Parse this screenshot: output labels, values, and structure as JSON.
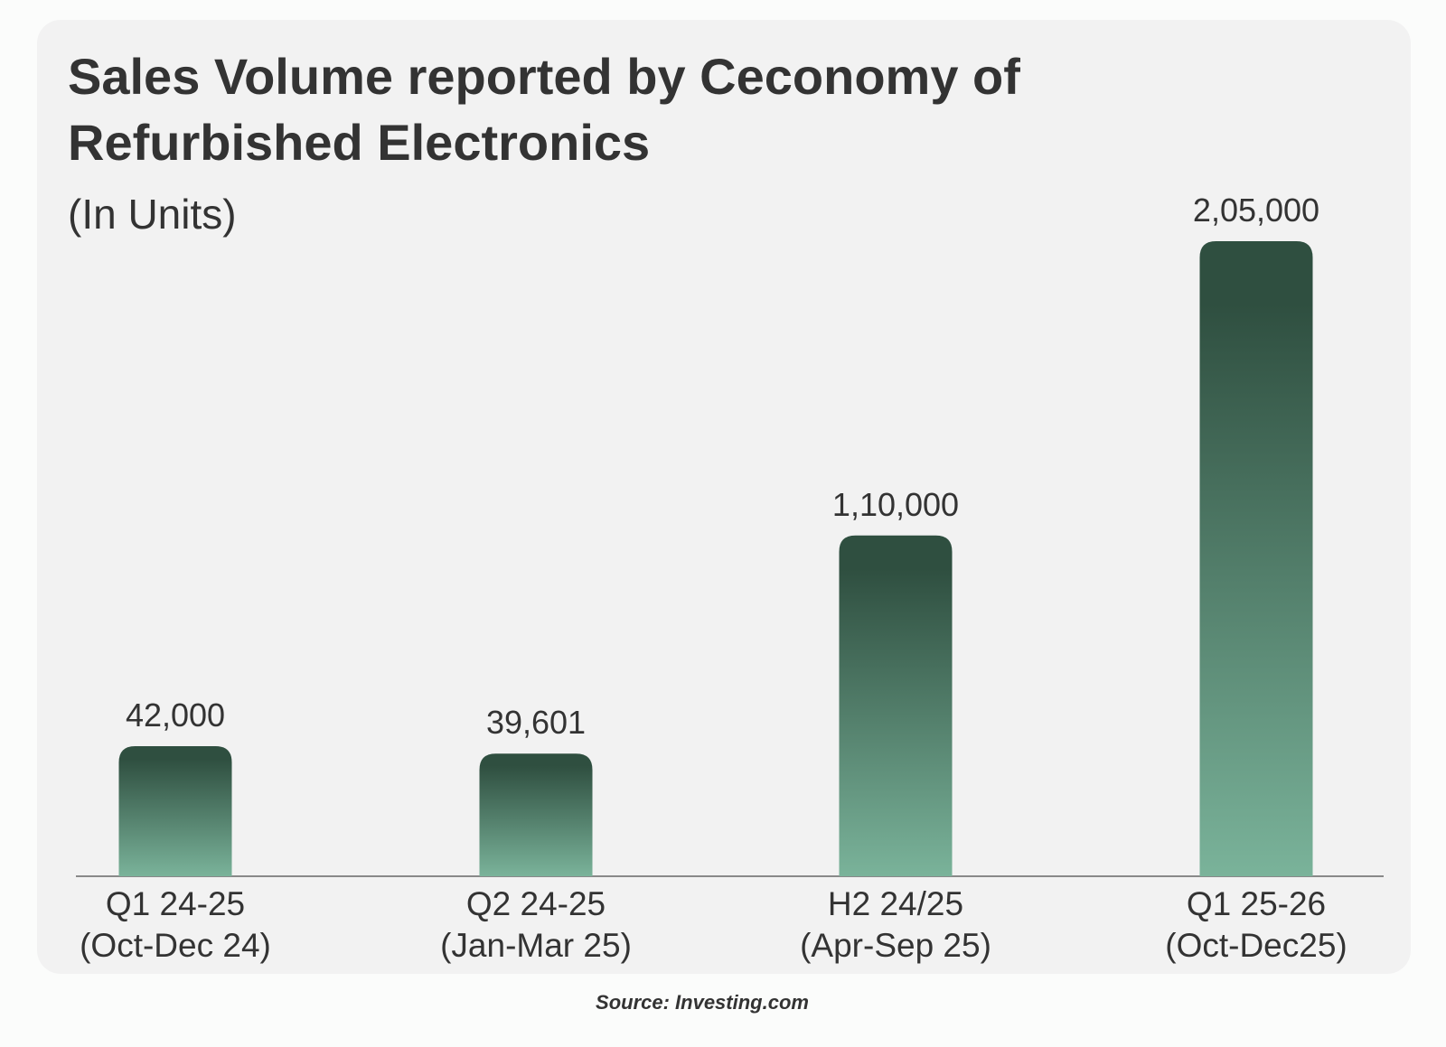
{
  "chart_data": {
    "type": "bar",
    "title": [
      "Sales Volume reported by Ceconomy of",
      "Refurbished Electronics"
    ],
    "subtitle": "(In Units)",
    "categories": [
      [
        "Q1 24-25",
        "(Oct-Dec 24)"
      ],
      [
        "Q2 24-25",
        "(Jan-Mar 25)"
      ],
      [
        "H2 24/25",
        "(Apr-Sep 25)"
      ],
      [
        "Q1 25-26",
        "(Oct-Dec25)"
      ]
    ],
    "values": [
      42000,
      39601,
      110000,
      205000
    ],
    "value_labels": [
      "42,000",
      "39,601",
      "1,10,000",
      "2,05,000"
    ],
    "color": [
      "#2f4f40",
      "#7ab39a"
    ],
    "source": "Source: Investing.com"
  }
}
